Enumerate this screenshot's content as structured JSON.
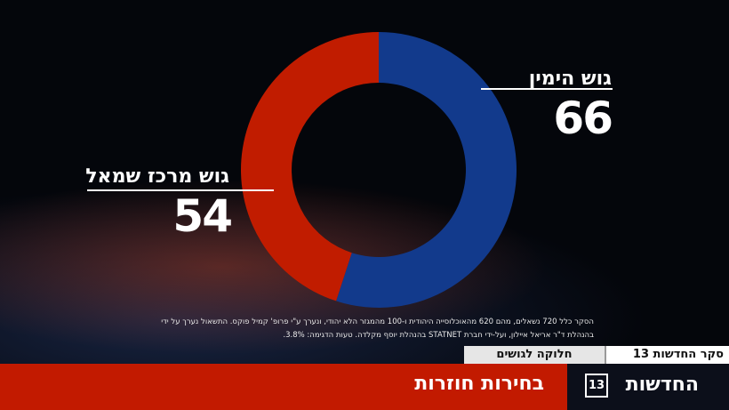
{
  "chart_data": {
    "type": "pie",
    "series": [
      {
        "name": "גוש הימין",
        "values": [
          66
        ],
        "color": "#123a8c"
      },
      {
        "name": "גוש מרכז שמאל",
        "values": [
          54
        ],
        "color": "#c11c00"
      }
    ]
  },
  "notes": {
    "line1": "הסקר כלל 720 נשאלים, מהם 620 מהאוכלוסייה היהודית ו-100 מהמגזר הלא יהודי, ונערך ע\"י פרופ' קמיל פוקס. התשאול נערך על ידי",
    "line2": "בהנהלת ד\"ר אריאל איילון, ועל-ידי חברת STATNET בהנהלת יוסף מקלדה. טעות הדגימה: 3.8%."
  },
  "strip": {
    "poll_label": "סקר החדשות 13",
    "section_label": "חלוקה לגושים"
  },
  "bottom": {
    "brand": "החדשות",
    "brand_number": "13",
    "headline": "בחירות חוזרות"
  },
  "colors": {
    "bottom_red": "#c21a00",
    "bottom_dark": "#0c0f1a"
  }
}
